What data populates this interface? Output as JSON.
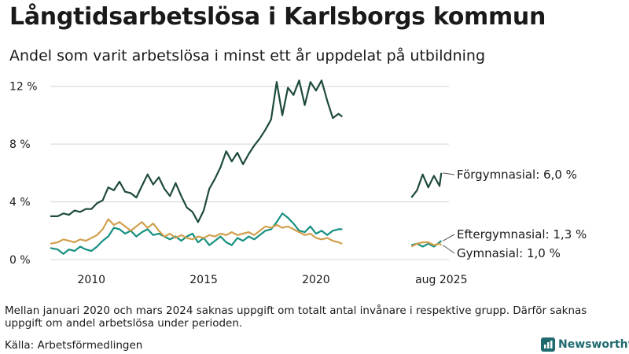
{
  "title": "Långtidsarbetslösa i Karlsborgs kommun",
  "subtitle": "Andel som varit arbetslösa i minst ett år uppdelat på utbildning",
  "footnote": "Mellan januari 2020 och mars 2024 saknas uppgift om totalt antal invånare i respektive grupp. Därför saknas uppgift om andel arbetslösa under perioden.",
  "source": "Källa: Arbetsförmedlingen",
  "brand": "Newsworthy",
  "colors": {
    "forgymnasial": "#1e4a3c",
    "eftergymnasial": "#169080",
    "gymnasial": "#d1a04e",
    "grid": "#d4d4d4",
    "brand": "#1f6a6f"
  },
  "chart_data": {
    "type": "line",
    "y_tick_labels": [
      "0 %",
      "4 %",
      "8 %",
      "12 %"
    ],
    "y_ticks": [
      0,
      4,
      8,
      12
    ],
    "ylim": [
      0,
      12.8
    ],
    "x_tick_labels": [
      "2010",
      "2015",
      "2020",
      "aug 2025"
    ],
    "x_ticks": [
      2010,
      2015,
      2020,
      2025.58
    ],
    "xlim": [
      2008.17,
      2025.92
    ],
    "series": [
      {
        "name": "Förgymnasial",
        "end_label": "Förgymnasial: 6,0 %",
        "color_key": "forgymnasial",
        "segments": [
          [
            [
              2008.17,
              3.0
            ],
            [
              2008.5,
              3.0
            ],
            [
              2008.75,
              3.2
            ],
            [
              2009.0,
              3.1
            ],
            [
              2009.25,
              3.4
            ],
            [
              2009.5,
              3.3
            ],
            [
              2009.75,
              3.5
            ],
            [
              2010.0,
              3.5
            ],
            [
              2010.25,
              3.9
            ],
            [
              2010.5,
              4.1
            ],
            [
              2010.75,
              5.0
            ],
            [
              2011.0,
              4.8
            ],
            [
              2011.25,
              5.4
            ],
            [
              2011.5,
              4.7
            ],
            [
              2011.75,
              4.6
            ],
            [
              2012.0,
              4.3
            ],
            [
              2012.25,
              5.1
            ],
            [
              2012.5,
              5.9
            ],
            [
              2012.75,
              5.2
            ],
            [
              2013.0,
              5.7
            ],
            [
              2013.25,
              4.9
            ],
            [
              2013.5,
              4.4
            ],
            [
              2013.75,
              5.3
            ],
            [
              2014.0,
              4.4
            ],
            [
              2014.25,
              3.6
            ],
            [
              2014.5,
              3.3
            ],
            [
              2014.75,
              2.6
            ],
            [
              2015.0,
              3.4
            ],
            [
              2015.25,
              4.9
            ],
            [
              2015.5,
              5.6
            ],
            [
              2015.75,
              6.4
            ],
            [
              2016.0,
              7.5
            ],
            [
              2016.25,
              6.8
            ],
            [
              2016.5,
              7.4
            ],
            [
              2016.75,
              6.6
            ],
            [
              2017.0,
              7.3
            ],
            [
              2017.25,
              7.9
            ],
            [
              2017.5,
              8.4
            ],
            [
              2017.75,
              9.0
            ],
            [
              2018.0,
              9.7
            ],
            [
              2018.25,
              12.3
            ],
            [
              2018.5,
              10.0
            ],
            [
              2018.75,
              11.9
            ],
            [
              2019.0,
              11.4
            ],
            [
              2019.25,
              12.4
            ],
            [
              2019.5,
              10.7
            ],
            [
              2019.75,
              12.3
            ],
            [
              2020.0,
              11.7
            ],
            [
              2020.25,
              12.4
            ],
            [
              2020.5,
              11.0
            ],
            [
              2020.75,
              9.8
            ],
            [
              2021.0,
              10.1
            ],
            [
              2021.17,
              9.9
            ]
          ],
          [
            [
              2024.25,
              4.3
            ],
            [
              2024.5,
              4.8
            ],
            [
              2024.75,
              5.9
            ],
            [
              2025.0,
              5.0
            ],
            [
              2025.25,
              5.8
            ],
            [
              2025.5,
              5.1
            ],
            [
              2025.58,
              6.0
            ]
          ]
        ]
      },
      {
        "name": "Eftergymnasial",
        "end_label": "Eftergymnasial: 1,3 %",
        "color_key": "eftergymnasial",
        "segments": [
          [
            [
              2008.17,
              0.8
            ],
            [
              2008.5,
              0.7
            ],
            [
              2008.75,
              0.4
            ],
            [
              2009.0,
              0.7
            ],
            [
              2009.25,
              0.6
            ],
            [
              2009.5,
              0.9
            ],
            [
              2009.75,
              0.7
            ],
            [
              2010.0,
              0.6
            ],
            [
              2010.25,
              0.9
            ],
            [
              2010.5,
              1.3
            ],
            [
              2010.75,
              1.6
            ],
            [
              2011.0,
              2.2
            ],
            [
              2011.25,
              2.1
            ],
            [
              2011.5,
              1.8
            ],
            [
              2011.75,
              2.0
            ],
            [
              2012.0,
              1.6
            ],
            [
              2012.25,
              1.9
            ],
            [
              2012.5,
              2.1
            ],
            [
              2012.75,
              1.7
            ],
            [
              2013.0,
              1.8
            ],
            [
              2013.25,
              1.6
            ],
            [
              2013.5,
              1.4
            ],
            [
              2013.75,
              1.6
            ],
            [
              2014.0,
              1.3
            ],
            [
              2014.25,
              1.6
            ],
            [
              2014.5,
              1.8
            ],
            [
              2014.75,
              1.2
            ],
            [
              2015.0,
              1.5
            ],
            [
              2015.25,
              1.0
            ],
            [
              2015.5,
              1.3
            ],
            [
              2015.75,
              1.6
            ],
            [
              2016.0,
              1.2
            ],
            [
              2016.25,
              1.0
            ],
            [
              2016.5,
              1.5
            ],
            [
              2016.75,
              1.3
            ],
            [
              2017.0,
              1.6
            ],
            [
              2017.25,
              1.4
            ],
            [
              2017.5,
              1.7
            ],
            [
              2017.75,
              2.0
            ],
            [
              2018.0,
              2.1
            ],
            [
              2018.25,
              2.6
            ],
            [
              2018.5,
              3.2
            ],
            [
              2018.75,
              2.9
            ],
            [
              2019.0,
              2.5
            ],
            [
              2019.25,
              2.0
            ],
            [
              2019.5,
              1.9
            ],
            [
              2019.75,
              2.3
            ],
            [
              2020.0,
              1.8
            ],
            [
              2020.25,
              2.0
            ],
            [
              2020.5,
              1.7
            ],
            [
              2020.75,
              2.0
            ],
            [
              2021.0,
              2.1
            ],
            [
              2021.17,
              2.1
            ]
          ],
          [
            [
              2024.25,
              1.0
            ],
            [
              2024.5,
              1.1
            ],
            [
              2024.75,
              0.9
            ],
            [
              2025.0,
              1.1
            ],
            [
              2025.25,
              0.9
            ],
            [
              2025.5,
              1.2
            ],
            [
              2025.58,
              1.3
            ]
          ]
        ]
      },
      {
        "name": "Gymnasial",
        "end_label": "Gymnasial: 1,0 %",
        "color_key": "gymnasial",
        "segments": [
          [
            [
              2008.17,
              1.1
            ],
            [
              2008.5,
              1.2
            ],
            [
              2008.75,
              1.4
            ],
            [
              2009.0,
              1.3
            ],
            [
              2009.25,
              1.2
            ],
            [
              2009.5,
              1.4
            ],
            [
              2009.75,
              1.3
            ],
            [
              2010.0,
              1.5
            ],
            [
              2010.25,
              1.7
            ],
            [
              2010.5,
              2.1
            ],
            [
              2010.75,
              2.8
            ],
            [
              2011.0,
              2.4
            ],
            [
              2011.25,
              2.6
            ],
            [
              2011.5,
              2.3
            ],
            [
              2011.75,
              2.0
            ],
            [
              2012.0,
              2.3
            ],
            [
              2012.25,
              2.6
            ],
            [
              2012.5,
              2.2
            ],
            [
              2012.75,
              2.5
            ],
            [
              2013.0,
              2.0
            ],
            [
              2013.25,
              1.6
            ],
            [
              2013.5,
              1.8
            ],
            [
              2013.75,
              1.5
            ],
            [
              2014.0,
              1.7
            ],
            [
              2014.25,
              1.5
            ],
            [
              2014.5,
              1.4
            ],
            [
              2014.75,
              1.6
            ],
            [
              2015.0,
              1.5
            ],
            [
              2015.25,
              1.7
            ],
            [
              2015.5,
              1.6
            ],
            [
              2015.75,
              1.8
            ],
            [
              2016.0,
              1.7
            ],
            [
              2016.25,
              1.9
            ],
            [
              2016.5,
              1.7
            ],
            [
              2016.75,
              1.8
            ],
            [
              2017.0,
              1.9
            ],
            [
              2017.25,
              1.7
            ],
            [
              2017.5,
              2.0
            ],
            [
              2017.75,
              2.3
            ],
            [
              2018.0,
              2.2
            ],
            [
              2018.25,
              2.4
            ],
            [
              2018.5,
              2.2
            ],
            [
              2018.75,
              2.3
            ],
            [
              2019.0,
              2.1
            ],
            [
              2019.25,
              1.9
            ],
            [
              2019.5,
              1.7
            ],
            [
              2019.75,
              1.8
            ],
            [
              2020.0,
              1.5
            ],
            [
              2020.25,
              1.4
            ],
            [
              2020.5,
              1.5
            ],
            [
              2020.75,
              1.3
            ],
            [
              2021.0,
              1.2
            ],
            [
              2021.17,
              1.1
            ]
          ],
          [
            [
              2024.25,
              0.9
            ],
            [
              2024.5,
              1.1
            ],
            [
              2024.75,
              1.2
            ],
            [
              2025.0,
              1.2
            ],
            [
              2025.25,
              1.0
            ],
            [
              2025.5,
              1.1
            ],
            [
              2025.58,
              1.0
            ]
          ]
        ]
      }
    ]
  }
}
